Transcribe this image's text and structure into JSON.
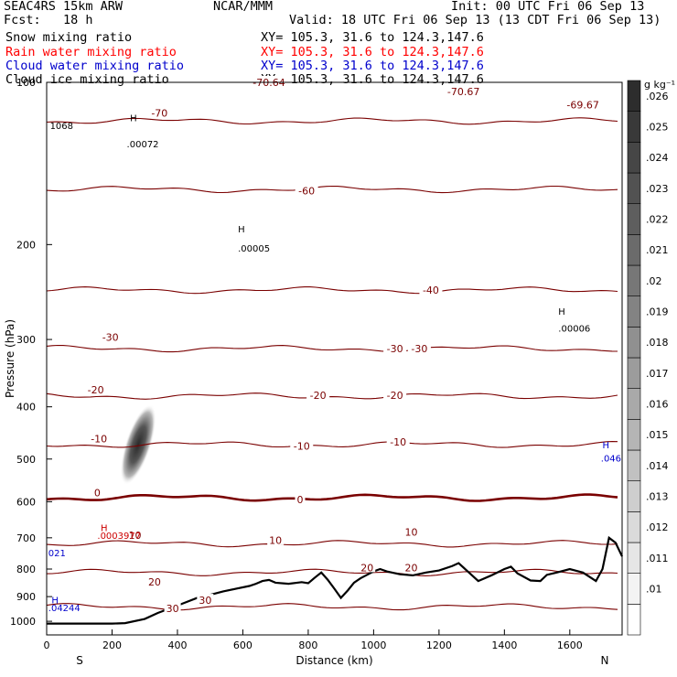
{
  "header": {
    "model": "SEAC4RS 15km ARW",
    "center": "NCAR/MMM",
    "init": "Init: 00 UTC Fri 06 Sep 13",
    "fcst": "Fcst:   18 h",
    "valid": "Valid: 18 UTC Fri 06 Sep 13 (13 CDT Fri 06 Sep 13)",
    "fields": [
      {
        "name": "Snow mixing ratio",
        "xy": "XY= 105.3, 31.6 to 124.3,147.6",
        "color": "#000000"
      },
      {
        "name": "Rain water mixing ratio",
        "xy": "XY= 105.3, 31.6 to 124.3,147.6",
        "color": "#ff0000"
      },
      {
        "name": "Cloud water mixing ratio",
        "xy": "XY= 105.3, 31.6 to 124.3,147.6",
        "color": "#0000cc"
      },
      {
        "name": "Cloud ice mixing ratio",
        "xy": "XY= 105.3, 31.6 to 124.3,147.6",
        "color": "#000000"
      }
    ]
  },
  "chart_data": {
    "type": "cross-section",
    "xlabel": "Distance (km)",
    "ylabel": "Pressure (hPa)",
    "xlim": [
      0,
      1760
    ],
    "ylim": [
      1060,
      100
    ],
    "yscale": "log",
    "xticks": [
      0,
      200,
      400,
      600,
      800,
      1000,
      1200,
      1400,
      1600
    ],
    "yticks": [
      200,
      300,
      400,
      500,
      600,
      700,
      800,
      900,
      1000
    ],
    "yticks_extra_label": "100",
    "x_end_labels": {
      "left": "S",
      "right": "N"
    },
    "colorbar": {
      "unit": "g kg⁻¹",
      "levels": [
        ".01",
        ".011",
        ".012",
        ".013",
        ".014",
        ".015",
        ".016",
        ".017",
        ".018",
        ".019",
        ".02",
        ".021",
        ".022",
        ".023",
        ".024",
        ".025",
        ".026"
      ]
    },
    "temperature_contours": [
      {
        "label": "-70",
        "p": 118
      },
      {
        "label": "-60",
        "p": 158
      },
      {
        "label": "-40",
        "p": 243
      },
      {
        "label": "-30",
        "p": 312
      },
      {
        "label": "-20",
        "p": 382
      },
      {
        "label": "-10",
        "p": 470
      },
      {
        "label": "0",
        "p": 590
      },
      {
        "label": "10",
        "p": 718
      },
      {
        "label": "20",
        "p": 812
      },
      {
        "label": "30",
        "p": 940
      }
    ],
    "contour_labels": [
      {
        "text": "-70",
        "x": 345,
        "p": 114
      },
      {
        "text": "-70.67",
        "x": 1275,
        "p": 104
      },
      {
        "text": "-69.67",
        "x": 1640,
        "p": 110
      },
      {
        "text": "-70.64",
        "x": 680,
        "p": 100
      },
      {
        "text": "-60",
        "x": 795,
        "p": 159
      },
      {
        "text": "-40",
        "x": 1175,
        "p": 243
      },
      {
        "text": "-30",
        "x": 195,
        "p": 297
      },
      {
        "text": "-30",
        "x": 1065,
        "p": 312
      },
      {
        "text": "-30",
        "x": 1140,
        "p": 312
      },
      {
        "text": "-20",
        "x": 150,
        "p": 372
      },
      {
        "text": "-20",
        "x": 830,
        "p": 381
      },
      {
        "text": "-20",
        "x": 1065,
        "p": 381
      },
      {
        "text": "-10",
        "x": 160,
        "p": 458
      },
      {
        "text": "-10",
        "x": 780,
        "p": 473
      },
      {
        "text": "-10",
        "x": 1075,
        "p": 465
      },
      {
        "text": "0",
        "x": 155,
        "p": 577
      },
      {
        "text": "0",
        "x": 775,
        "p": 594
      },
      {
        "text": "10",
        "x": 270,
        "p": 692
      },
      {
        "text": "10",
        "x": 700,
        "p": 708
      },
      {
        "text": "10",
        "x": 1115,
        "p": 683
      },
      {
        "text": "20",
        "x": 330,
        "p": 845
      },
      {
        "text": "20",
        "x": 980,
        "p": 795
      },
      {
        "text": "20",
        "x": 1115,
        "p": 795
      },
      {
        "text": "30",
        "x": 385,
        "p": 946
      },
      {
        "text": "30",
        "x": 485,
        "p": 914
      }
    ],
    "annotations": [
      {
        "text": "1068",
        "x": 10,
        "p": 122,
        "color": "#000000"
      },
      {
        "text": "H",
        "x": 255,
        "p": 118,
        "color": "#000000"
      },
      {
        "text": ".00072",
        "x": 245,
        "p": 132,
        "color": "#000000"
      },
      {
        "text": "H",
        "x": 585,
        "p": 190,
        "color": "#000000"
      },
      {
        "text": ".00005",
        "x": 585,
        "p": 206,
        "color": "#000000"
      },
      {
        "text": "H",
        "x": 1565,
        "p": 270,
        "color": "#000000"
      },
      {
        "text": ".00006",
        "x": 1565,
        "p": 290,
        "color": "#000000"
      },
      {
        "text": "H",
        "x": 1700,
        "p": 478,
        "color": "#0000cc"
      },
      {
        "text": ".046",
        "x": 1695,
        "p": 505,
        "color": "#0000cc"
      },
      {
        "text": "H",
        "x": 165,
        "p": 680,
        "color": "#cc0000"
      },
      {
        "text": ".0003977",
        "x": 155,
        "p": 703,
        "color": "#cc0000"
      },
      {
        "text": "021",
        "x": 5,
        "p": 757,
        "color": "#0000cc"
      },
      {
        "text": "H",
        "x": 15,
        "p": 926,
        "color": "#0000cc"
      },
      {
        "text": ".04244",
        "x": 5,
        "p": 957,
        "color": "#0000cc"
      }
    ],
    "terrain": [
      [
        0,
        1010
      ],
      [
        100,
        1010
      ],
      [
        200,
        1010
      ],
      [
        240,
        1008
      ],
      [
        300,
        990
      ],
      [
        340,
        965
      ],
      [
        380,
        945
      ],
      [
        420,
        925
      ],
      [
        460,
        905
      ],
      [
        500,
        893
      ],
      [
        540,
        880
      ],
      [
        580,
        870
      ],
      [
        620,
        860
      ],
      [
        640,
        852
      ],
      [
        660,
        842
      ],
      [
        680,
        838
      ],
      [
        700,
        848
      ],
      [
        740,
        852
      ],
      [
        780,
        846
      ],
      [
        800,
        850
      ],
      [
        820,
        830
      ],
      [
        840,
        812
      ],
      [
        860,
        838
      ],
      [
        880,
        870
      ],
      [
        900,
        905
      ],
      [
        920,
        878
      ],
      [
        940,
        848
      ],
      [
        960,
        832
      ],
      [
        980,
        820
      ],
      [
        1000,
        808
      ],
      [
        1020,
        800
      ],
      [
        1040,
        808
      ],
      [
        1080,
        818
      ],
      [
        1120,
        822
      ],
      [
        1160,
        812
      ],
      [
        1200,
        805
      ],
      [
        1240,
        790
      ],
      [
        1260,
        780
      ],
      [
        1280,
        800
      ],
      [
        1320,
        842
      ],
      [
        1360,
        822
      ],
      [
        1400,
        800
      ],
      [
        1420,
        792
      ],
      [
        1440,
        815
      ],
      [
        1480,
        840
      ],
      [
        1510,
        842
      ],
      [
        1530,
        820
      ],
      [
        1560,
        812
      ],
      [
        1600,
        800
      ],
      [
        1640,
        812
      ],
      [
        1680,
        842
      ],
      [
        1700,
        800
      ],
      [
        1720,
        700
      ],
      [
        1740,
        715
      ],
      [
        1760,
        758
      ]
    ],
    "snow_max": {
      "x": 280,
      "p": 470,
      "value": 0.026
    }
  }
}
